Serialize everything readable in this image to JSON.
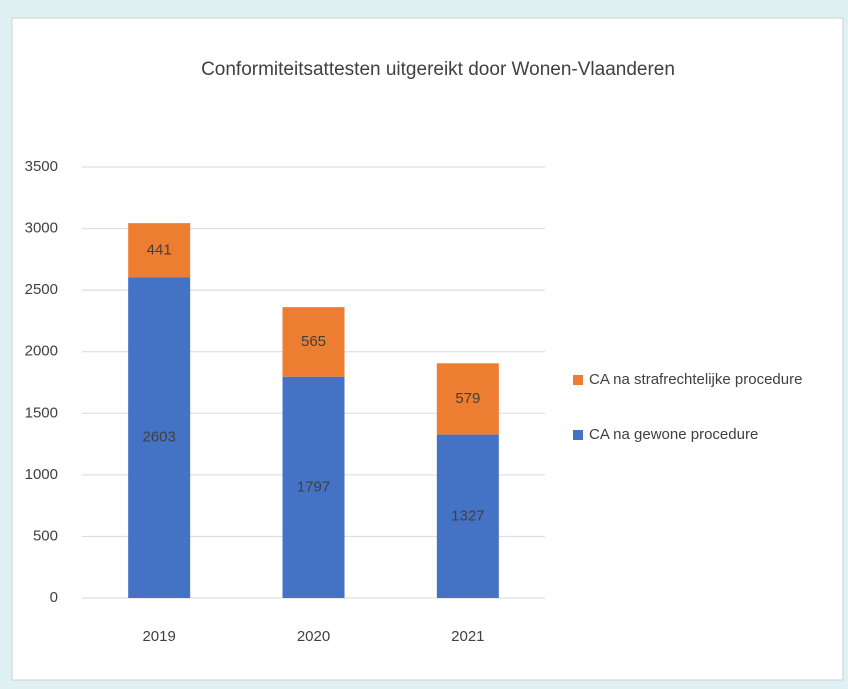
{
  "chart_data": {
    "type": "stacked_bar",
    "title": "Conformiteitsattesten uitgereikt door Wonen-Vlaanderen",
    "categories": [
      "2019",
      "2020",
      "2021"
    ],
    "series": [
      {
        "name": "CA na gewone procedure",
        "color": "#4472c4",
        "values": [
          2603,
          1797,
          1327
        ]
      },
      {
        "name": "CA na strafrechtelijke procedure",
        "color": "#ed7d31",
        "values": [
          441,
          565,
          579
        ]
      }
    ],
    "ylim": [
      0,
      3500
    ],
    "yticks": [
      0,
      500,
      1000,
      1500,
      2000,
      2500,
      3000,
      3500
    ],
    "grid": true,
    "legend": "right"
  }
}
